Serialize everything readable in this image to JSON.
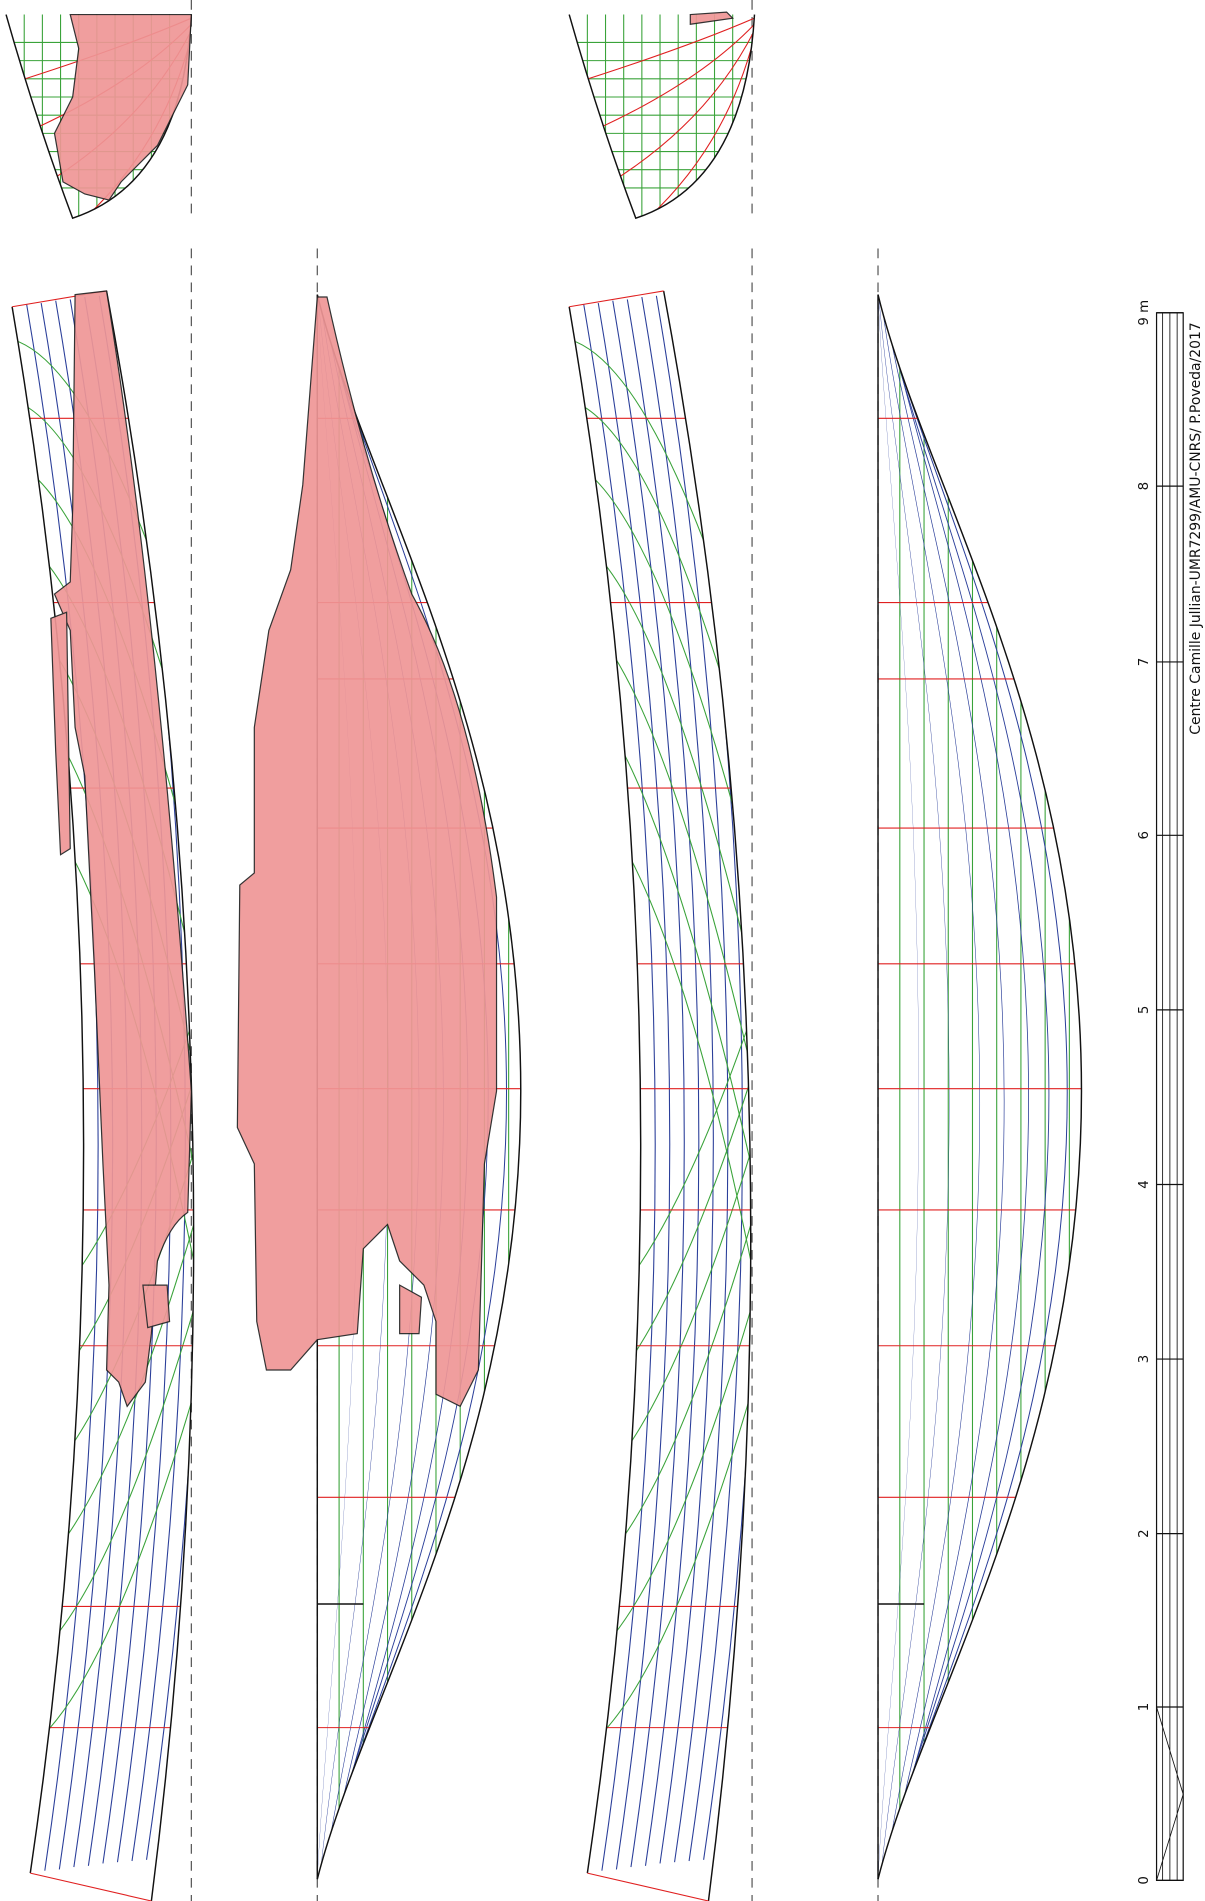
{
  "scale": {
    "labels": [
      "0",
      "1",
      "2",
      "3",
      "4",
      "5",
      "6",
      "7",
      "8",
      "9 m"
    ]
  },
  "credit": "Centre Camille Jullian-UMR7299/AMU-CNRS/ P.Poveda/2017"
}
